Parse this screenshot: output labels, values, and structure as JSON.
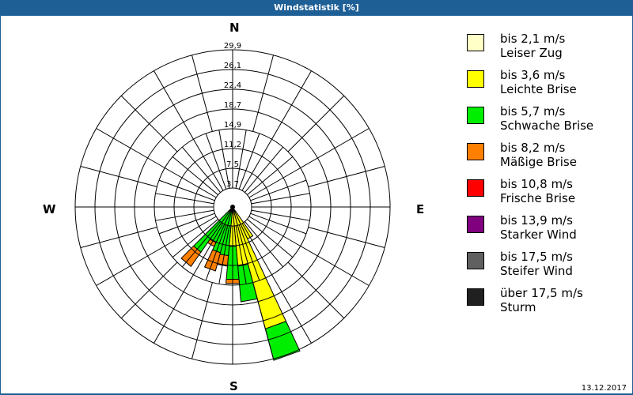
{
  "title": "Windstatistik [%]",
  "date": "13.12.2017",
  "compass": {
    "n": "N",
    "e": "E",
    "s": "S",
    "w": "W"
  },
  "legend": [
    {
      "range": "bis 2,1 m/s",
      "name": "Leiser Zug",
      "color": "#ffffc8"
    },
    {
      "range": "bis 3,6 m/s",
      "name": "Leichte Brise",
      "color": "#ffff00"
    },
    {
      "range": "bis 5,7 m/s",
      "name": "Schwache Brise",
      "color": "#00ee00"
    },
    {
      "range": "bis 8,2 m/s",
      "name": "Mäßige Brise",
      "color": "#ff8000"
    },
    {
      "range": "bis 10,8 m/s",
      "name": "Frische Brise",
      "color": "#ff0000"
    },
    {
      "range": "bis 13,9 m/s",
      "name": "Starker Wind",
      "color": "#800080"
    },
    {
      "range": "bis 17,5 m/s",
      "name": "Steifer Wind",
      "color": "#606060"
    },
    {
      "range": "über 17,5 m/s",
      "name": "Sturm",
      "color": "#202020"
    }
  ],
  "chart_data": {
    "type": "windrose",
    "title": "Windstatistik [%]",
    "radial_ticks": [
      "3,7",
      "7,5",
      "11,2",
      "14,9",
      "18,7",
      "22,4",
      "26,1",
      "29,9"
    ],
    "radial_max": 29.9,
    "directions_deg": [
      150,
      160,
      170,
      180,
      190,
      200,
      210,
      220
    ],
    "series": [
      {
        "name": "bis 2,1 m/s",
        "values": [
          0,
          0,
          0,
          0,
          0,
          0,
          0,
          0
        ]
      },
      {
        "name": "bis 3,6 m/s",
        "values": [
          6.7,
          24.0,
          11.3,
          7.5,
          0,
          0,
          0,
          0
        ]
      },
      {
        "name": "bis 5,7 m/s",
        "values": [
          0,
          6.2,
          6.8,
          6.3,
          9.3,
          9.0,
          7.5,
          10.5
        ]
      },
      {
        "name": "bis 8,2 m/s",
        "values": [
          0,
          0,
          0,
          0.8,
          2.0,
          3.6,
          0.8,
          3.3
        ]
      },
      {
        "name": "bis 10,8 m/s",
        "values": [
          0,
          0,
          0,
          0,
          0,
          0,
          0,
          0
        ]
      },
      {
        "name": "bis 13,9 m/s",
        "values": [
          0,
          0,
          0,
          0,
          0,
          0,
          0,
          0
        ]
      },
      {
        "name": "bis 17,5 m/s",
        "values": [
          0,
          0,
          0,
          0,
          0,
          0,
          0,
          0
        ]
      },
      {
        "name": "über 17,5 m/s",
        "values": [
          0,
          0,
          0,
          0,
          0,
          0,
          0,
          0
        ]
      }
    ],
    "cumulative_note": "values are stacked percentages per direction"
  }
}
